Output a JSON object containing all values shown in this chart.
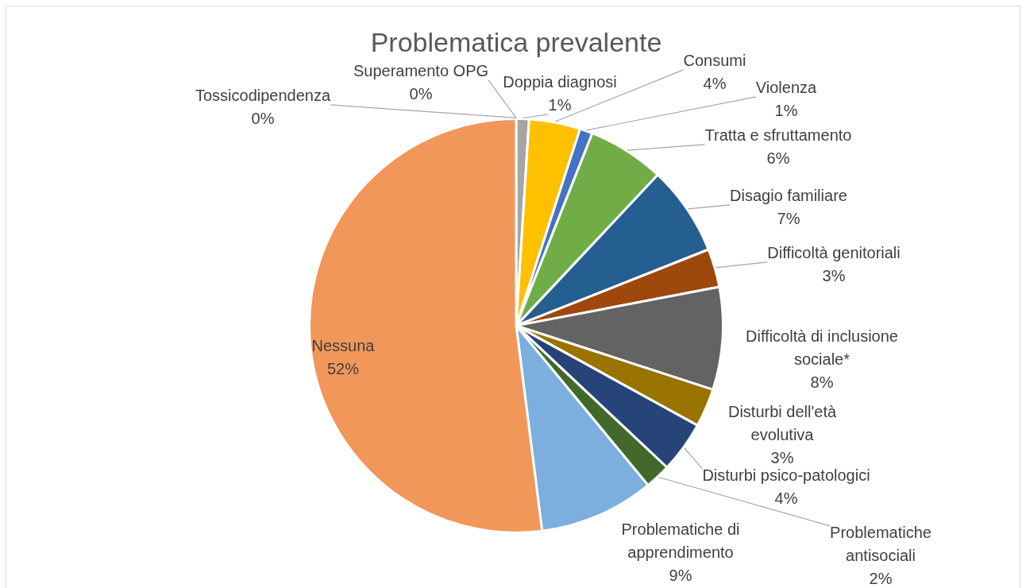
{
  "chart_data": {
    "type": "pie",
    "title": "Problematica prevalente",
    "categories": [
      "Tossicodipendenza",
      "Superamento OPG",
      "Doppia diagnosi",
      "Consumi",
      "Violenza",
      "Tratta e sfruttamento",
      "Disagio familiare",
      "Difficoltà genitoriali",
      "Difficoltà di inclusione sociale*",
      "Disturbi dell'età evolutiva",
      "Disturbi psico-patologici",
      "Problematiche antisociali",
      "Problematiche di apprendimento",
      "Nessuna"
    ],
    "values": [
      0,
      0,
      1,
      4,
      1,
      6,
      7,
      3,
      8,
      3,
      4,
      2,
      9,
      52
    ],
    "colors": [
      "#5b9bd5",
      "#ed7d31",
      "#a5a5a5",
      "#ffc000",
      "#4472c4",
      "#70ad47",
      "#255e91",
      "#9e480e",
      "#636363",
      "#997300",
      "#264478",
      "#43682b",
      "#7cafdd",
      "#f1975a"
    ],
    "value_labels": [
      "0%",
      "0%",
      "1%",
      "4%",
      "1%",
      "6%",
      "7%",
      "3%",
      "8%",
      "3%",
      "4%",
      "2%",
      "9%",
      "52%"
    ]
  }
}
